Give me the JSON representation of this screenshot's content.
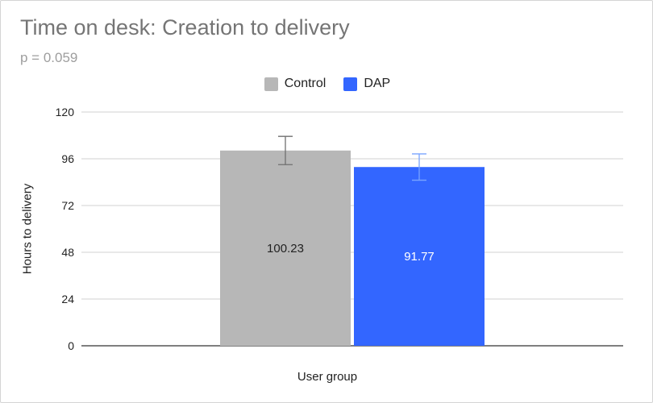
{
  "chart_data": {
    "type": "bar",
    "title": "Time on desk: Creation to delivery",
    "subtitle": "p = 0.059",
    "xlabel": "User group",
    "ylabel": "Hours to delivery",
    "ylim": [
      0,
      120
    ],
    "yticks": [
      "0",
      "24",
      "48",
      "72",
      "96",
      "120"
    ],
    "grid": true,
    "legend_position": "top",
    "categories": [
      ""
    ],
    "series": [
      {
        "name": "Control",
        "values": [
          100.23
        ],
        "error_low": [
          93
        ],
        "error_high": [
          107.5
        ],
        "color": "#b7b7b7",
        "error_color": "#6f6f6f",
        "label_color": "#222222"
      },
      {
        "name": "DAP",
        "values": [
          91.77
        ],
        "error_low": [
          85
        ],
        "error_high": [
          98.5
        ],
        "color": "#3366ff",
        "error_color": "#7aa5ff",
        "label_color": "#ffffff"
      }
    ],
    "data_labels": [
      "100.23",
      "91.77"
    ]
  }
}
